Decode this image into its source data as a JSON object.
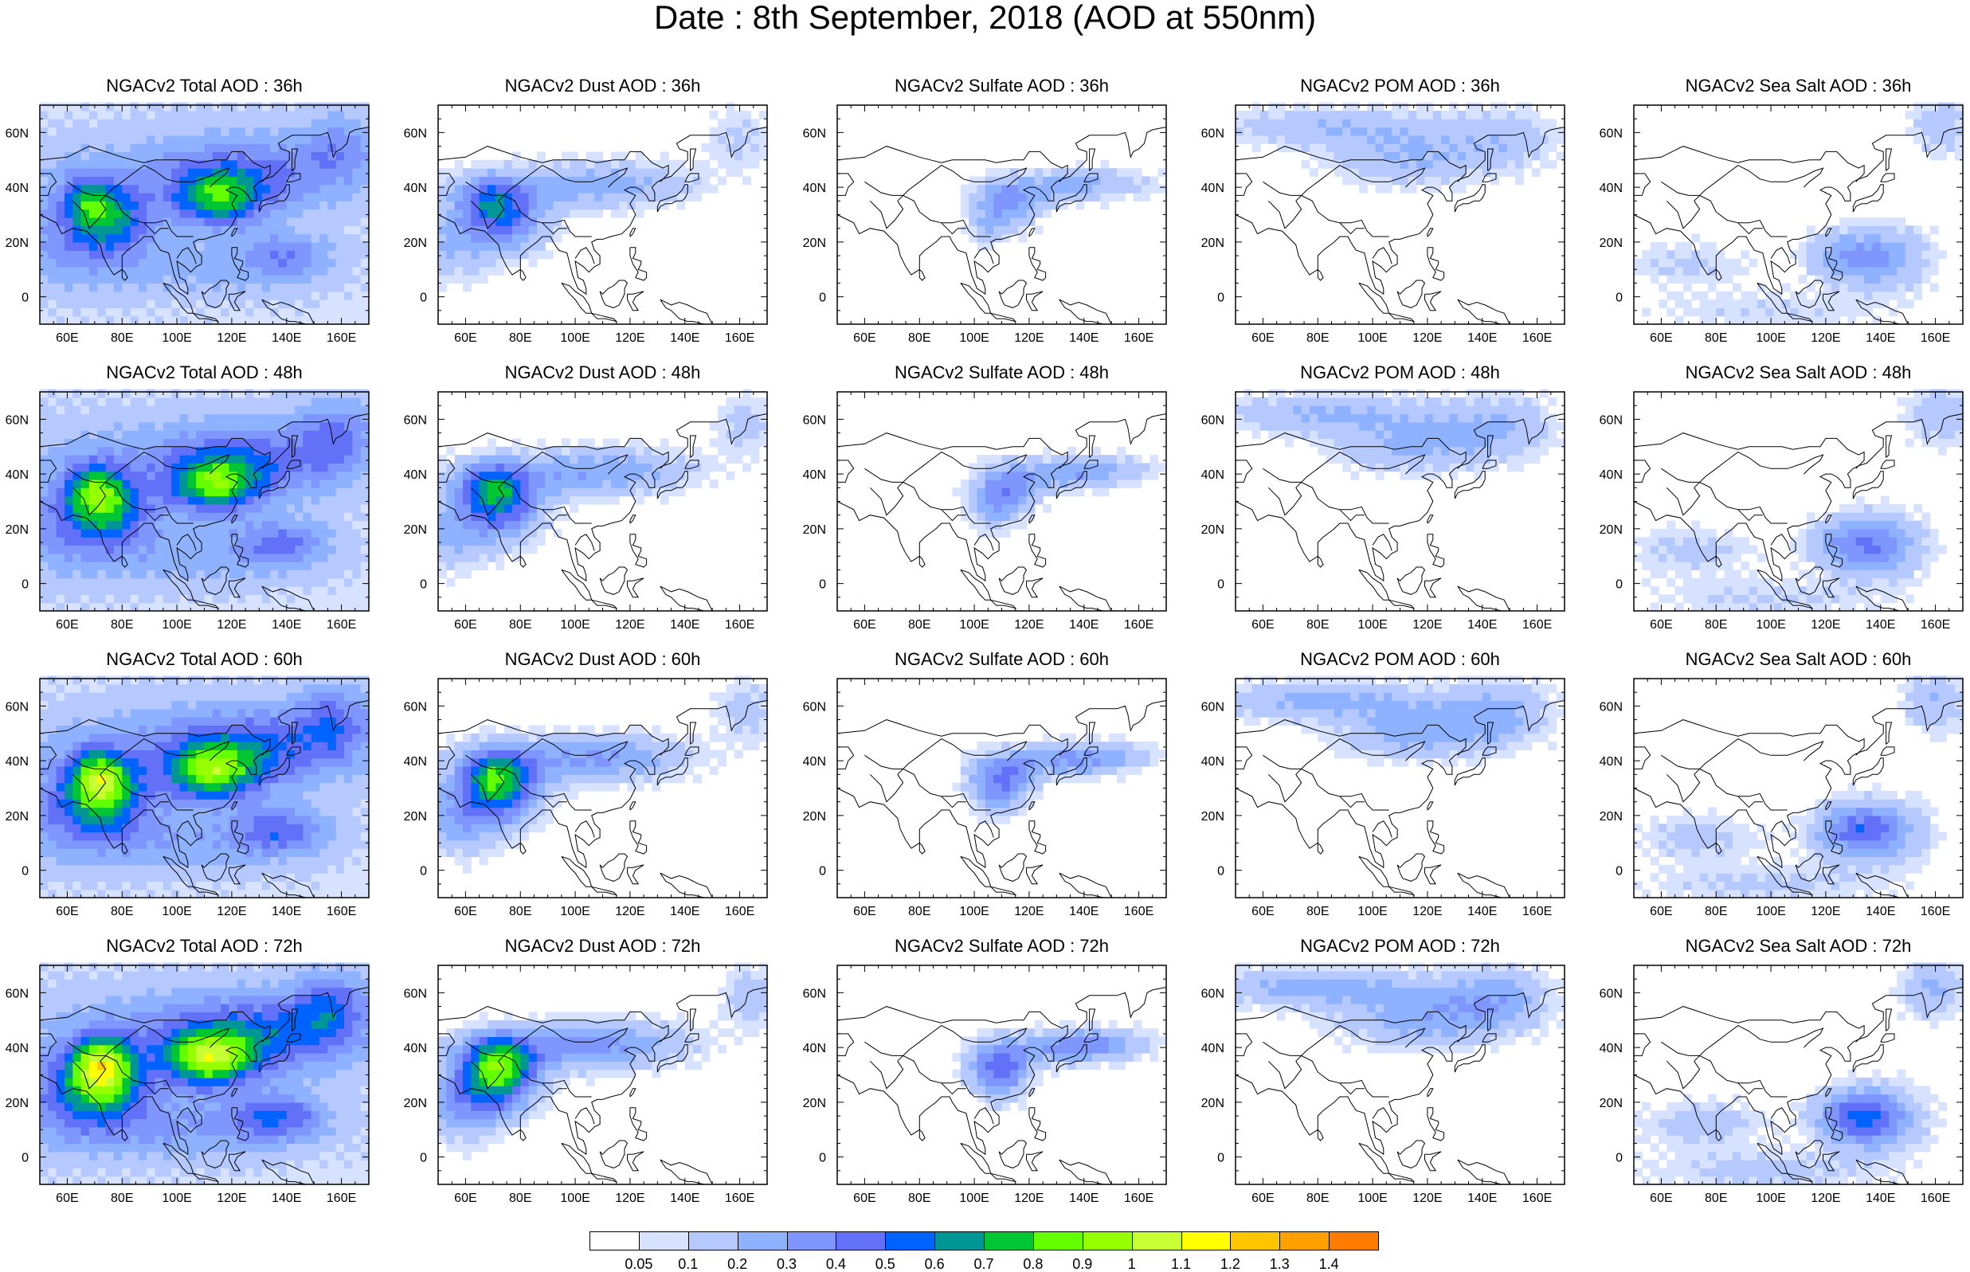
{
  "title": "Date : 8th September, 2018 (AOD at 550nm)",
  "map": {
    "lon_range": [
      50,
      170
    ],
    "lat_range": [
      -10,
      70
    ],
    "lon_ticks": [
      "60E",
      "80E",
      "100E",
      "120E",
      "140E",
      "160E"
    ],
    "lon_tick_values": [
      60,
      80,
      100,
      120,
      140,
      160
    ],
    "lat_ticks": [
      "60N",
      "40N",
      "20N",
      "0"
    ],
    "lat_tick_values": [
      60,
      40,
      20,
      0
    ]
  },
  "rows": [
    {
      "hour": "36h",
      "titles": [
        "NGACv2 Total AOD : 36h",
        "NGACv2 Dust AOD : 36h",
        "NGACv2 Sulfate AOD : 36h",
        "NGACv2 POM AOD : 36h",
        "NGACv2 Sea Salt AOD : 36h"
      ]
    },
    {
      "hour": "48h",
      "titles": [
        "NGACv2 Total AOD : 48h",
        "NGACv2 Dust AOD : 48h",
        "NGACv2 Sulfate AOD : 48h",
        "NGACv2 POM AOD : 48h",
        "NGACv2 Sea Salt AOD : 48h"
      ]
    },
    {
      "hour": "60h",
      "titles": [
        "NGACv2 Total AOD : 60h",
        "NGACv2 Dust AOD : 60h",
        "NGACv2 Sulfate AOD : 60h",
        "NGACv2 POM AOD : 60h",
        "NGACv2 Sea Salt AOD : 60h"
      ]
    },
    {
      "hour": "72h",
      "titles": [
        "NGACv2 Total AOD : 72h",
        "NGACv2 Dust AOD : 72h",
        "NGACv2 Sulfate AOD : 72h",
        "NGACv2 POM AOD : 72h",
        "NGACv2 Sea Salt  AOD : 72h"
      ]
    }
  ],
  "species": [
    "Total",
    "Dust",
    "Sulfate",
    "POM",
    "Sea Salt"
  ],
  "colorbar": {
    "labels": [
      "0.05",
      "0.1",
      "0.2",
      "0.3",
      "0.4",
      "0.5",
      "0.6",
      "0.7",
      "0.8",
      "0.9",
      "1",
      "1.1",
      "1.2",
      "1.3",
      "1.4"
    ],
    "colors": [
      "#ffffff",
      "#d6e2ff",
      "#b5c9ff",
      "#8eb2ff",
      "#7f96ff",
      "#6370f8",
      "#0063ff",
      "#009696",
      "#00c633",
      "#63ff00",
      "#96ff00",
      "#c6ff33",
      "#ffff00",
      "#ffc600",
      "#ffa000",
      "#ff7c00",
      "#ff1900"
    ]
  }
}
